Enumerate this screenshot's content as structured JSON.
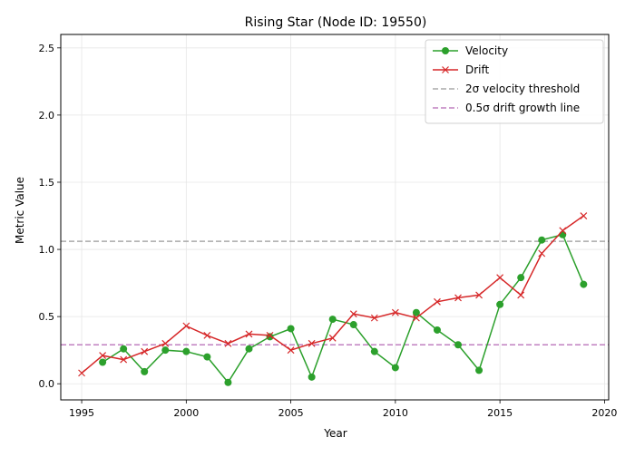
{
  "chart_data": {
    "type": "line",
    "title": "Rising Star (Node ID: 19550)",
    "xlabel": "Year",
    "ylabel": "Metric Value",
    "xlim": [
      1994,
      2020.2
    ],
    "ylim": [
      -0.12,
      2.6
    ],
    "xticks": [
      1995,
      2000,
      2005,
      2010,
      2015,
      2020
    ],
    "yticks": [
      0.0,
      0.5,
      1.0,
      1.5,
      2.0,
      2.5
    ],
    "ytick_labels": [
      "0.0",
      "0.5",
      "1.0",
      "1.5",
      "2.0",
      "2.5"
    ],
    "grid": true,
    "legend_position": "top-right",
    "series": [
      {
        "name": "Velocity",
        "color": "#2ca02c",
        "marker": "circle",
        "x": [
          1996,
          1997,
          1998,
          1999,
          2000,
          2001,
          2002,
          2003,
          2004,
          2005,
          2006,
          2007,
          2008,
          2009,
          2010,
          2011,
          2012,
          2013,
          2014,
          2015,
          2016,
          2017,
          2018,
          2019
        ],
        "y": [
          0.16,
          0.26,
          0.09,
          0.25,
          0.24,
          0.2,
          0.01,
          0.26,
          0.35,
          0.41,
          0.05,
          0.48,
          0.44,
          0.24,
          0.12,
          0.53,
          0.4,
          0.29,
          0.1,
          0.59,
          0.79,
          1.07,
          1.11,
          0.74
        ]
      },
      {
        "name": "Drift",
        "color": "#d62728",
        "marker": "x",
        "x": [
          1995,
          1996,
          1997,
          1998,
          1999,
          2000,
          2001,
          2002,
          2003,
          2004,
          2005,
          2006,
          2007,
          2008,
          2009,
          2010,
          2011,
          2012,
          2013,
          2014,
          2015,
          2016,
          2017,
          2018,
          2019
        ],
        "y": [
          0.08,
          0.21,
          0.18,
          0.24,
          0.3,
          0.43,
          0.36,
          0.3,
          0.37,
          0.36,
          0.25,
          0.3,
          0.34,
          0.52,
          0.49,
          0.53,
          0.49,
          0.61,
          0.64,
          0.66,
          0.79,
          0.66,
          0.97,
          1.14,
          1.25
        ]
      }
    ],
    "reference_lines": [
      {
        "name": "2σ velocity threshold",
        "y": 1.06,
        "color": "#aaaaaa",
        "style": "dashed"
      },
      {
        "name": "0.5σ drift growth line",
        "y": 0.29,
        "color": "#c080c0",
        "style": "dashed"
      }
    ]
  }
}
